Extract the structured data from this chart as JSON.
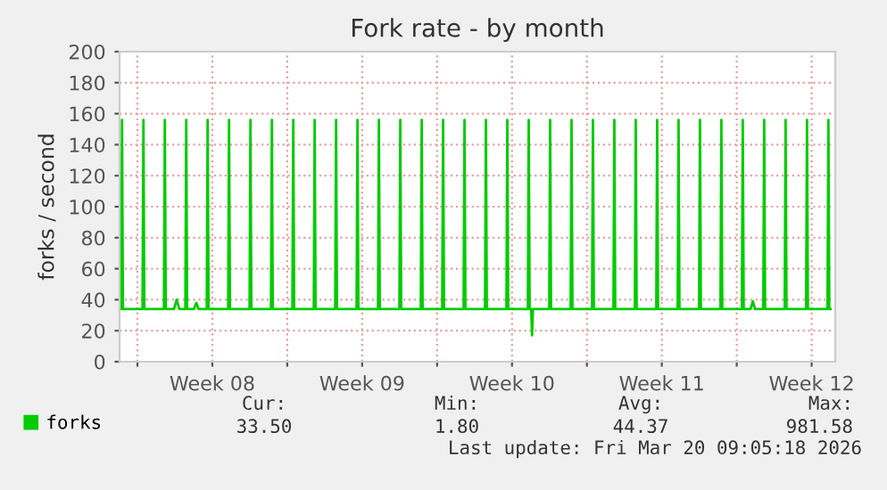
{
  "chart_data": {
    "type": "line",
    "title": "Fork rate - by month",
    "ylabel": "forks / second",
    "x": [
      "2026-02-15T04:50",
      "2026-02-15T05:45",
      "2026-02-15T06:45",
      "2026-02-15T07:45",
      "2026-02-16T05:45",
      "2026-02-16T06:45",
      "2026-02-16T07:45",
      "2026-02-17T05:45",
      "2026-02-17T06:45",
      "2026-02-17T07:45",
      "2026-02-17T17:00",
      "2026-02-17T20:00",
      "2026-02-17T23:00",
      "2026-02-18T05:45",
      "2026-02-18T06:45",
      "2026-02-18T07:45",
      "2026-02-18T15:30",
      "2026-02-18T18:00",
      "2026-02-18T20:30",
      "2026-02-19T05:45",
      "2026-02-19T06:45",
      "2026-02-19T07:45",
      "2026-02-20T05:45",
      "2026-02-20T06:45",
      "2026-02-20T07:45",
      "2026-02-21T05:45",
      "2026-02-21T06:45",
      "2026-02-21T07:45",
      "2026-02-22T05:45",
      "2026-02-22T06:45",
      "2026-02-22T07:45",
      "2026-02-23T05:45",
      "2026-02-23T06:45",
      "2026-02-23T07:45",
      "2026-02-24T05:45",
      "2026-02-24T06:45",
      "2026-02-24T07:45",
      "2026-02-25T05:45",
      "2026-02-25T06:45",
      "2026-02-25T07:45",
      "2026-02-26T05:45",
      "2026-02-26T06:45",
      "2026-02-26T07:45",
      "2026-02-27T05:45",
      "2026-02-27T06:45",
      "2026-02-27T07:45",
      "2026-02-28T05:45",
      "2026-02-28T06:45",
      "2026-02-28T07:45",
      "2026-03-01T05:45",
      "2026-03-01T06:45",
      "2026-03-01T07:45",
      "2026-03-02T05:45",
      "2026-03-02T06:45",
      "2026-03-02T07:45",
      "2026-03-03T05:45",
      "2026-03-03T06:45",
      "2026-03-03T07:45",
      "2026-03-04T05:45",
      "2026-03-04T06:45",
      "2026-03-04T07:45",
      "2026-03-05T05:45",
      "2026-03-05T06:45",
      "2026-03-05T07:45",
      "2026-03-06T05:45",
      "2026-03-06T06:45",
      "2026-03-06T07:45",
      "2026-03-06T09:30",
      "2026-03-06T10:30",
      "2026-03-06T11:30",
      "2026-03-07T05:45",
      "2026-03-07T06:45",
      "2026-03-07T07:45",
      "2026-03-08T05:45",
      "2026-03-08T06:45",
      "2026-03-08T07:45",
      "2026-03-09T05:45",
      "2026-03-09T06:45",
      "2026-03-09T07:45",
      "2026-03-10T05:45",
      "2026-03-10T06:45",
      "2026-03-10T07:45",
      "2026-03-11T05:45",
      "2026-03-11T06:45",
      "2026-03-11T07:45",
      "2026-03-12T05:45",
      "2026-03-12T06:45",
      "2026-03-12T07:45",
      "2026-03-13T05:45",
      "2026-03-13T06:45",
      "2026-03-13T07:45",
      "2026-03-14T05:45",
      "2026-03-14T06:45",
      "2026-03-14T07:45",
      "2026-03-15T05:45",
      "2026-03-15T06:45",
      "2026-03-15T07:45",
      "2026-03-16T05:45",
      "2026-03-16T06:45",
      "2026-03-16T07:45",
      "2026-03-16T15:30",
      "2026-03-16T18:00",
      "2026-03-16T20:30",
      "2026-03-17T05:45",
      "2026-03-17T06:45",
      "2026-03-17T07:45",
      "2026-03-18T05:45",
      "2026-03-18T06:45",
      "2026-03-18T07:45",
      "2026-03-19T05:45",
      "2026-03-19T06:45",
      "2026-03-19T07:45",
      "2026-03-20T05:45",
      "2026-03-20T06:45",
      "2026-03-20T07:45",
      "2026-03-20T09:05"
    ],
    "series": [
      {
        "name": "forks",
        "color": "#00cc00",
        "values": [
          34,
          34,
          156,
          34,
          34,
          156,
          34,
          34,
          156,
          34,
          34,
          40,
          34,
          34,
          156,
          34,
          34,
          38,
          34,
          34,
          156,
          34,
          34,
          156,
          34,
          34,
          156,
          34,
          34,
          156,
          34,
          34,
          156,
          34,
          34,
          156,
          34,
          34,
          156,
          34,
          34,
          156,
          34,
          34,
          156,
          34,
          34,
          156,
          34,
          34,
          156,
          34,
          34,
          156,
          34,
          34,
          156,
          34,
          34,
          156,
          34,
          34,
          156,
          34,
          34,
          156,
          34,
          34,
          17,
          34,
          34,
          156,
          34,
          34,
          156,
          34,
          34,
          156,
          34,
          34,
          156,
          34,
          34,
          156,
          34,
          34,
          156,
          34,
          34,
          156,
          34,
          34,
          156,
          34,
          34,
          156,
          34,
          34,
          156,
          34,
          34,
          39,
          34,
          34,
          156,
          34,
          34,
          156,
          34,
          34,
          156,
          34,
          34,
          156,
          34,
          34
        ]
      }
    ],
    "xlim": [
      "2026-02-15T04:00",
      "2026-03-20T14:25"
    ],
    "xticks": [
      {
        "value": "2026-02-16",
        "label": null
      },
      {
        "value": "2026-02-19T12:00",
        "label": "Week 08"
      },
      {
        "value": "2026-02-23",
        "label": null
      },
      {
        "value": "2026-02-26T12:00",
        "label": "Week 09"
      },
      {
        "value": "2026-03-02",
        "label": null
      },
      {
        "value": "2026-03-05T12:00",
        "label": "Week 10"
      },
      {
        "value": "2026-03-09",
        "label": null
      },
      {
        "value": "2026-03-12T12:00",
        "label": "Week 11"
      },
      {
        "value": "2026-03-16",
        "label": null
      },
      {
        "value": "2026-03-19T12:00",
        "label": "Week 12"
      }
    ],
    "ylim": [
      0,
      200
    ],
    "yticks": [
      0,
      20,
      40,
      60,
      80,
      100,
      120,
      140,
      160,
      180,
      200
    ],
    "grid": true,
    "legend": "bottom left",
    "marker": "none",
    "line_style": "solid",
    "annotations": [
      "Cur:",
      "33.50",
      "Min:",
      "1.80",
      "Avg:",
      "44.37",
      "Max:",
      "981.58",
      "Last update: Fri Mar 20 09:05:18 2026"
    ]
  }
}
